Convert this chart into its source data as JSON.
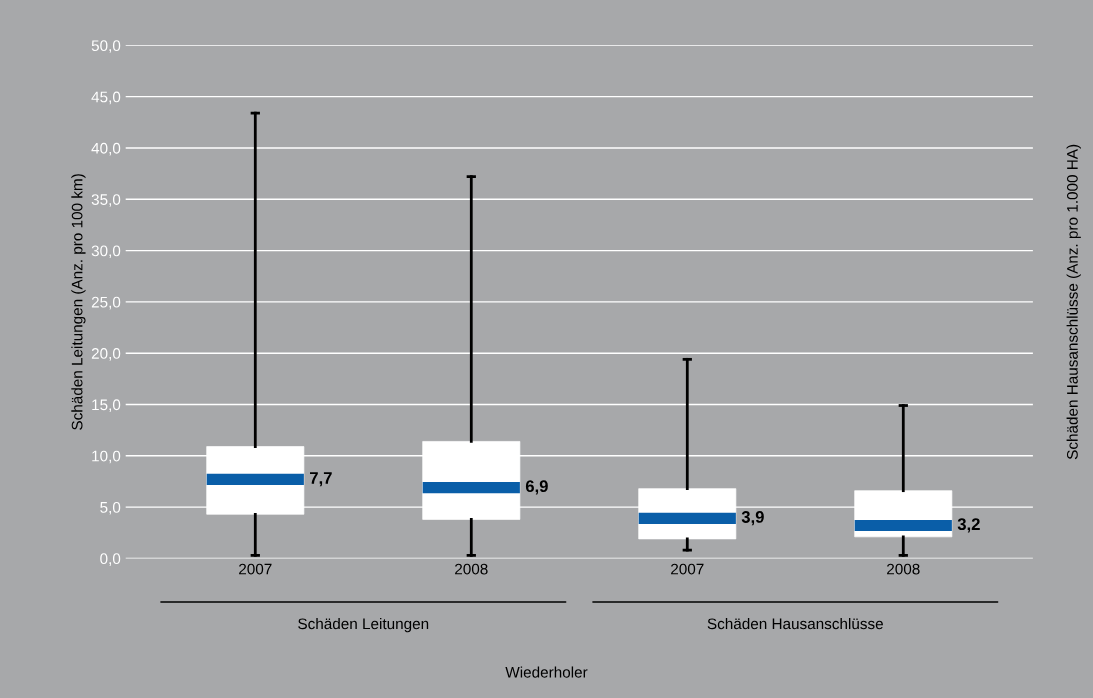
{
  "chart_data": {
    "type": "box",
    "categories": [
      "2007",
      "2008",
      "2007",
      "2008"
    ],
    "boxes": [
      {
        "low": 0.3,
        "q1": 4.3,
        "median": 7.7,
        "q3": 10.9,
        "high": 43.4
      },
      {
        "low": 0.3,
        "q1": 3.8,
        "median": 6.9,
        "q3": 11.4,
        "high": 37.2
      },
      {
        "low": 0.8,
        "q1": 1.9,
        "median": 3.9,
        "q3": 6.8,
        "high": 19.4
      },
      {
        "low": 0.3,
        "q1": 2.1,
        "median": 3.2,
        "q3": 6.6,
        "high": 14.9
      }
    ],
    "value_labels": [
      "7,7",
      "6,9",
      "3,9",
      "3,2"
    ],
    "color": "#ffffff",
    "ylabel": "Schäden Leitungen (Anz. pro 100 km)",
    "y2label": "Schäden Hausanschlüsse (Anz. pro 1.000 HA)",
    "annotations": [
      "Schäden Leitungen",
      "Schäden Hausanschlüsse",
      "Wiederholer"
    ],
    "ylim": [
      0,
      50
    ],
    "yticks": [
      {
        "value": 0,
        "label": "0,0"
      },
      {
        "value": 5,
        "label": "5,0"
      },
      {
        "value": 10,
        "label": "10,0"
      },
      {
        "value": 15,
        "label": "15,0"
      },
      {
        "value": 20,
        "label": "20,0"
      },
      {
        "value": 25,
        "label": "25,0"
      },
      {
        "value": 30,
        "label": "30,0"
      },
      {
        "value": 35,
        "label": "35,0"
      },
      {
        "value": 40,
        "label": "40,0"
      },
      {
        "value": 45,
        "label": "45,0"
      },
      {
        "value": 50,
        "label": "50,0"
      }
    ],
    "grid": "y"
  }
}
